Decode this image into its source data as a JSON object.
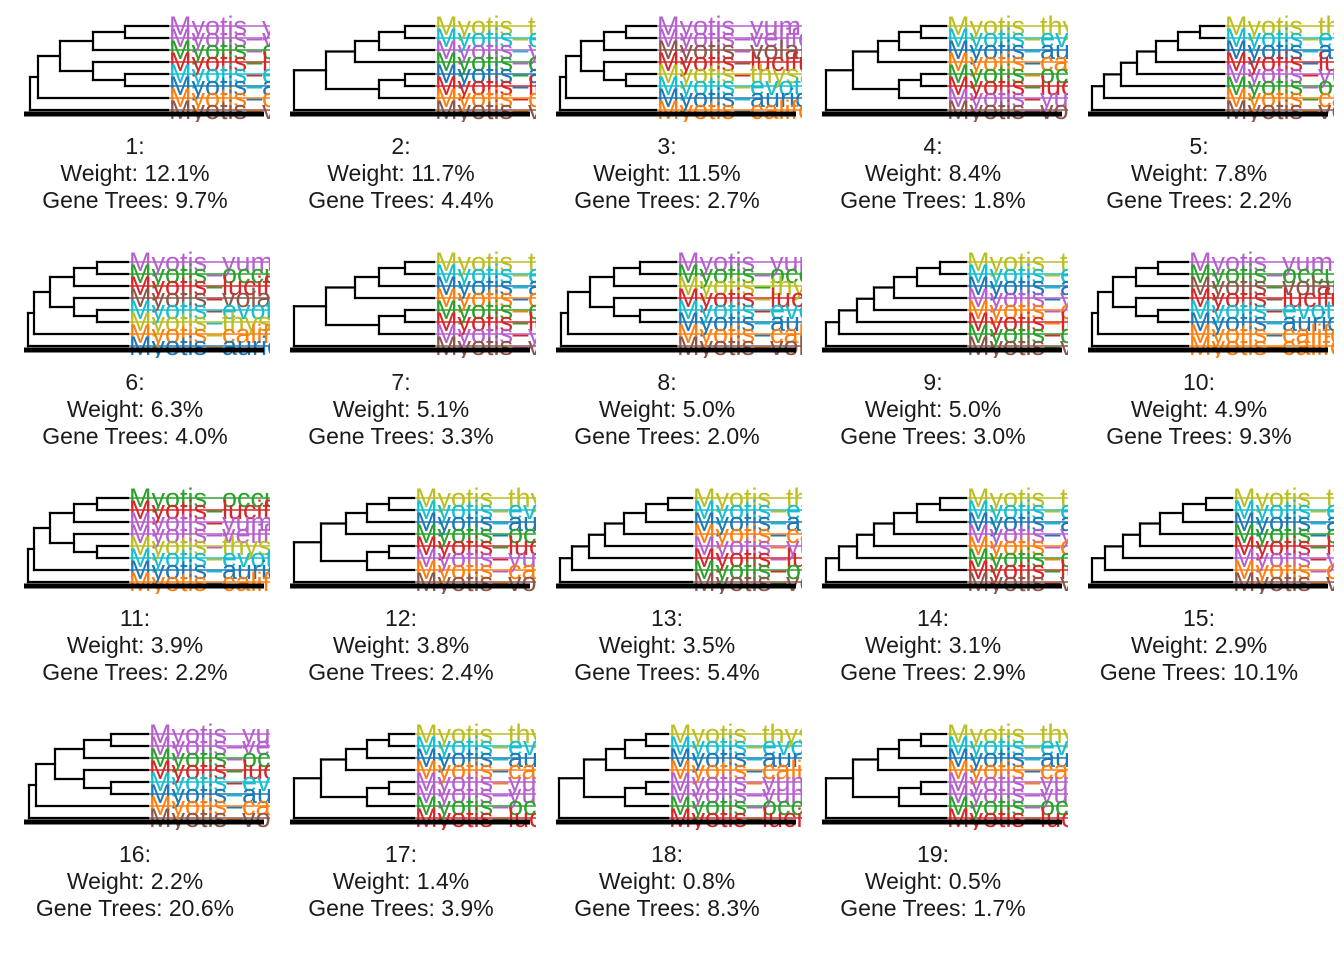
{
  "labels": {
    "weight_prefix": "Weight: ",
    "gene_trees_prefix": "Gene Trees: "
  },
  "taxa": {
    "yum": "Myotis_yumanensis",
    "vel": "Myotis_velifer",
    "occ": "Myotis_occultus",
    "luc": "Myotis_lucifugus",
    "evo": "Myotis_evotis",
    "aur": "Myotis_auriculus",
    "cal": "Myotis_californicus",
    "vol": "Myotis_volans",
    "the": "Myotis_thysanodes"
  },
  "colors": {
    "yum": "#b660cd",
    "vel": "#b660cd",
    "occ": "#2ca02c",
    "luc": "#d62728",
    "evo": "#17becf",
    "aur": "#1f77b4",
    "cal": "#ff7f0e",
    "vol": "#8c564b",
    "the": "#bcbd22",
    "branch": "#000000"
  },
  "topologies": [
    {
      "id": "1:",
      "weight": "12.1%",
      "gene_trees": "9.7%",
      "pattern": "A",
      "leaves": [
        "yum",
        "vel",
        "occ",
        "luc",
        "evo",
        "aur",
        "cal",
        "vol"
      ],
      "crown": 144
    },
    {
      "id": "2:",
      "weight": "11.7%",
      "gene_trees": "4.4%",
      "pattern": "C",
      "leaves": [
        "the",
        "evo",
        "yum",
        "occ",
        "aur",
        "luc",
        "cal",
        "vol"
      ],
      "crown": 144
    },
    {
      "id": "3:",
      "weight": "11.5%",
      "gene_trees": "2.7%",
      "pattern": "A",
      "leaves": [
        "yum",
        "vel",
        "vol",
        "luc",
        "the",
        "evo",
        "aur",
        "cal"
      ],
      "crown": 100
    },
    {
      "id": "4:",
      "weight": "8.4%",
      "gene_trees": "1.8%",
      "pattern": "C",
      "leaves": [
        "the",
        "evo",
        "aur",
        "cal",
        "occ",
        "luc",
        "yum",
        "vol"
      ],
      "crown": 124
    },
    {
      "id": "5:",
      "weight": "7.8%",
      "gene_trees": "2.2%",
      "pattern": "D",
      "leaves": [
        "the",
        "evo",
        "aur",
        "luc",
        "yum",
        "occ",
        "cal",
        "vol"
      ],
      "crown": 136
    },
    {
      "id": "6:",
      "weight": "6.3%",
      "gene_trees": "4.0%",
      "pattern": "A",
      "leaves": [
        "yum",
        "occ",
        "luc",
        "vol",
        "evo",
        "the",
        "cal",
        "aur"
      ],
      "crown": 104
    },
    {
      "id": "7:",
      "weight": "5.1%",
      "gene_trees": "3.3%",
      "pattern": "C",
      "leaves": [
        "the",
        "evo",
        "aur",
        "cal",
        "occ",
        "luc",
        "yum",
        "vol"
      ],
      "crown": 144
    },
    {
      "id": "8:",
      "weight": "5.0%",
      "gene_trees": "2.0%",
      "pattern": "B",
      "leaves": [
        "yum",
        "occ",
        "the",
        "luc",
        "evo",
        "aur",
        "cal",
        "vol"
      ],
      "crown": 120
    },
    {
      "id": "9:",
      "weight": "5.0%",
      "gene_trees": "3.0%",
      "pattern": "D",
      "leaves": [
        "the",
        "evo",
        "aur",
        "yum",
        "cal",
        "luc",
        "occ",
        "vol"
      ],
      "crown": 144
    },
    {
      "id": "10:",
      "weight": "4.9%",
      "gene_trees": "9.3%",
      "pattern": "A",
      "leaves": [
        "yum",
        "occ",
        "vol",
        "luc",
        "evo",
        "aur",
        "cal",
        "cal"
      ],
      "crown": 100
    },
    {
      "id": "11:",
      "weight": "3.9%",
      "gene_trees": "2.2%",
      "pattern": "A",
      "leaves": [
        "occ",
        "luc",
        "yum",
        "vel",
        "the",
        "evo",
        "aur",
        "cal"
      ],
      "crown": 104
    },
    {
      "id": "12:",
      "weight": "3.8%",
      "gene_trees": "2.4%",
      "pattern": "C",
      "leaves": [
        "the",
        "evo",
        "aur",
        "occ",
        "luc",
        "yum",
        "cal",
        "vol"
      ],
      "crown": 124
    },
    {
      "id": "13:",
      "weight": "3.5%",
      "gene_trees": "5.4%",
      "pattern": "D",
      "leaves": [
        "the",
        "evo",
        "aur",
        "cal",
        "yum",
        "luc",
        "occ",
        "vol"
      ],
      "crown": 136
    },
    {
      "id": "14:",
      "weight": "3.1%",
      "gene_trees": "2.9%",
      "pattern": "D",
      "leaves": [
        "the",
        "evo",
        "aur",
        "yum",
        "cal",
        "occ",
        "luc",
        "vol"
      ],
      "crown": 144
    },
    {
      "id": "15:",
      "weight": "2.9%",
      "gene_trees": "10.1%",
      "pattern": "D",
      "leaves": [
        "the",
        "evo",
        "aur",
        "occ",
        "luc",
        "yum",
        "cal",
        "vol"
      ],
      "crown": 144
    },
    {
      "id": "16:",
      "weight": "2.2%",
      "gene_trees": "20.6%",
      "pattern": "A",
      "leaves": [
        "yum",
        "vel",
        "occ",
        "luc",
        "evo",
        "aur",
        "cal",
        "vol"
      ],
      "crown": 124
    },
    {
      "id": "17:",
      "weight": "1.4%",
      "gene_trees": "3.9%",
      "pattern": "C",
      "leaves": [
        "the",
        "evo",
        "aur",
        "cal",
        "yum",
        "yum",
        "occ",
        "luc"
      ],
      "crown": 124
    },
    {
      "id": "18:",
      "weight": "0.8%",
      "gene_trees": "8.3%",
      "pattern": "C",
      "leaves": [
        "the",
        "evo",
        "aur",
        "cal",
        "yum",
        "yum",
        "occ",
        "luc"
      ],
      "crown": 112
    },
    {
      "id": "19:",
      "weight": "0.5%",
      "gene_trees": "1.7%",
      "pattern": "C",
      "leaves": [
        "the",
        "evo",
        "aur",
        "cal",
        "yum",
        "yum",
        "occ",
        "luc"
      ],
      "crown": 124
    }
  ]
}
